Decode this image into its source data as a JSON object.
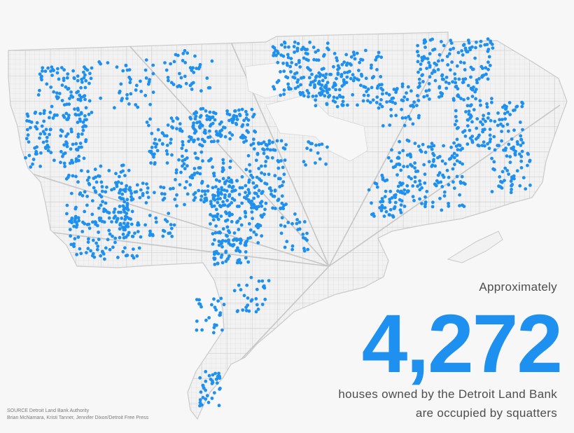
{
  "headline": {
    "intro": "Approximately",
    "number": "4,272",
    "caption_line1": "houses owned by the Detroit Land Bank",
    "caption_line2": "are occupied by squatters"
  },
  "credits": {
    "source": "SOURCE Detroit Land Bank Authority",
    "authors": "Brian McNamara, Kristi Tanner, Jennifer Dixon/Detroit Free Press"
  },
  "colors": {
    "background": "#f7f7f7",
    "streets": "#d9d9d9",
    "accent": "#1e90f0",
    "text": "#4d4d4d"
  },
  "map": {
    "subject": "City of Detroit",
    "marker": "occupied-house-dot"
  }
}
